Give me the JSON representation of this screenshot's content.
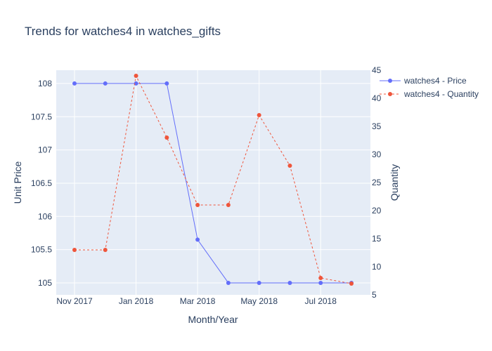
{
  "chart_data": {
    "type": "line",
    "title": "Trends for watches4 in watches_gifts",
    "xlabel": "Month/Year",
    "ylabel": "Unit Price",
    "y2label": "Quantity",
    "x": [
      "2017-11",
      "2017-12",
      "2018-01",
      "2018-02",
      "2018-03",
      "2018-04",
      "2018-05",
      "2018-06",
      "2018-07",
      "2018-08"
    ],
    "x_tick_labels": [
      "Nov 2017",
      "Jan 2018",
      "Mar 2018",
      "May 2018",
      "Jul 2018"
    ],
    "x_tick_positions": [
      "2017-11",
      "2018-01",
      "2018-03",
      "2018-05",
      "2018-07"
    ],
    "ylim": [
      104.82,
      108.2
    ],
    "y_ticks": [
      105,
      105.5,
      106,
      106.5,
      107,
      107.5,
      108
    ],
    "y_tick_labels": [
      "105",
      "105.5",
      "106",
      "106.5",
      "107",
      "107.5",
      "108"
    ],
    "y2lim": [
      5,
      45
    ],
    "y2_ticks": [
      5,
      10,
      15,
      20,
      25,
      30,
      35,
      40,
      45
    ],
    "y2_tick_labels": [
      "5",
      "10",
      "15",
      "20",
      "25",
      "30",
      "35",
      "40",
      "45"
    ],
    "legend_position": "top-right",
    "grid": true,
    "series": [
      {
        "name": "watches4 - Price",
        "axis": "y",
        "color": "#636efa",
        "dash": "solid",
        "values": [
          108,
          108,
          108,
          108,
          105.65,
          105,
          105,
          105,
          105,
          105
        ]
      },
      {
        "name": "watches4 - Quantity",
        "axis": "y2",
        "color": "#ef553b",
        "dash": "dash",
        "values": [
          13,
          13,
          44,
          33,
          21,
          21,
          37,
          28,
          8,
          7
        ]
      }
    ]
  }
}
